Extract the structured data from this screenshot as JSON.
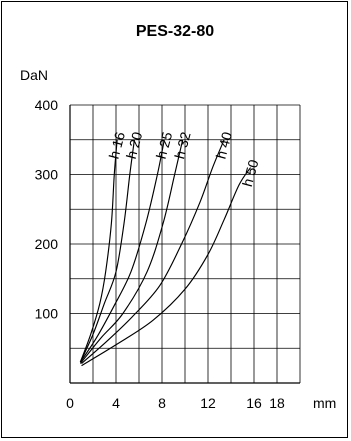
{
  "chart_data": {
    "type": "line",
    "title": "PES-32-80",
    "ylabel": "DaN",
    "xlabel": "mm",
    "x_ticks": [
      "0",
      "4",
      "8",
      "12",
      "16",
      "18"
    ],
    "y_ticks": [
      "100",
      "200",
      "300",
      "400"
    ],
    "xlim": [
      0,
      20
    ],
    "ylim": [
      0,
      400
    ],
    "grid": true,
    "series": [
      {
        "name": "h 16",
        "points": [
          [
            0.9,
            30
          ],
          [
            1.8,
            70
          ],
          [
            2.6,
            115
          ],
          [
            3.1,
            160
          ],
          [
            3.6,
            230
          ],
          [
            3.85,
            300
          ],
          [
            4.1,
            350
          ]
        ]
      },
      {
        "name": "h 20",
        "points": [
          [
            0.9,
            30
          ],
          [
            2.0,
            70
          ],
          [
            3.0,
            115
          ],
          [
            4.0,
            160
          ],
          [
            4.7,
            230
          ],
          [
            5.2,
            300
          ],
          [
            5.6,
            350
          ]
        ]
      },
      {
        "name": "h 25",
        "points": [
          [
            0.9,
            30
          ],
          [
            2.3,
            65
          ],
          [
            3.8,
            110
          ],
          [
            5.3,
            160
          ],
          [
            6.6,
            230
          ],
          [
            7.6,
            300
          ],
          [
            8.2,
            350
          ]
        ]
      },
      {
        "name": "h 32",
        "points": [
          [
            0.9,
            28
          ],
          [
            2.7,
            65
          ],
          [
            4.6,
            100
          ],
          [
            6.7,
            160
          ],
          [
            8.1,
            230
          ],
          [
            9.1,
            300
          ],
          [
            9.8,
            350
          ]
        ]
      },
      {
        "name": "h 40",
        "points": [
          [
            1.0,
            28
          ],
          [
            3.2,
            60
          ],
          [
            5.4,
            95
          ],
          [
            7.8,
            140
          ],
          [
            9.7,
            200
          ],
          [
            11.3,
            260
          ],
          [
            12.4,
            310
          ],
          [
            13.4,
            350
          ]
        ]
      },
      {
        "name": "h 50",
        "points": [
          [
            1.0,
            25
          ],
          [
            4.0,
            55
          ],
          [
            7.2,
            90
          ],
          [
            10.0,
            135
          ],
          [
            12.0,
            185
          ],
          [
            13.4,
            235
          ],
          [
            14.7,
            285
          ],
          [
            15.7,
            310
          ]
        ]
      }
    ]
  }
}
